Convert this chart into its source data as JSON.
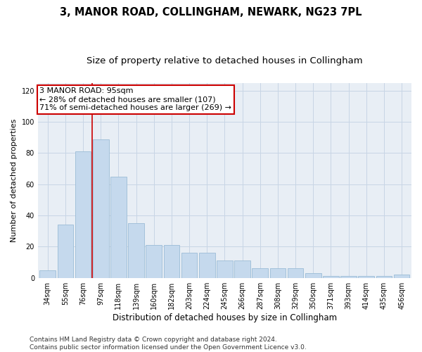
{
  "title": "3, MANOR ROAD, COLLINGHAM, NEWARK, NG23 7PL",
  "subtitle": "Size of property relative to detached houses in Collingham",
  "xlabel": "Distribution of detached houses by size in Collingham",
  "ylabel": "Number of detached properties",
  "categories": [
    "34sqm",
    "55sqm",
    "76sqm",
    "97sqm",
    "118sqm",
    "139sqm",
    "160sqm",
    "182sqm",
    "203sqm",
    "224sqm",
    "245sqm",
    "266sqm",
    "287sqm",
    "308sqm",
    "329sqm",
    "350sqm",
    "371sqm",
    "393sqm",
    "414sqm",
    "435sqm",
    "456sqm"
  ],
  "values": [
    5,
    34,
    81,
    89,
    65,
    35,
    21,
    21,
    16,
    16,
    11,
    11,
    6,
    6,
    6,
    3,
    1,
    1,
    1,
    1,
    2
  ],
  "bar_color": "#c5d9ed",
  "bar_edgecolor": "#9bbcd6",
  "grid_color": "#c8d5e5",
  "background_color": "#e8eef5",
  "vline_x": 2.5,
  "vline_color": "#cc0000",
  "annotation_text": "3 MANOR ROAD: 95sqm\n← 28% of detached houses are smaller (107)\n71% of semi-detached houses are larger (269) →",
  "annotation_box_color": "#ffffff",
  "annotation_box_edgecolor": "#cc0000",
  "ylim": [
    0,
    125
  ],
  "yticks": [
    0,
    20,
    40,
    60,
    80,
    100,
    120
  ],
  "footer": "Contains HM Land Registry data © Crown copyright and database right 2024.\nContains public sector information licensed under the Open Government Licence v3.0.",
  "title_fontsize": 10.5,
  "subtitle_fontsize": 9.5,
  "xlabel_fontsize": 8.5,
  "ylabel_fontsize": 8,
  "tick_fontsize": 7,
  "annotation_fontsize": 8,
  "footer_fontsize": 6.5
}
